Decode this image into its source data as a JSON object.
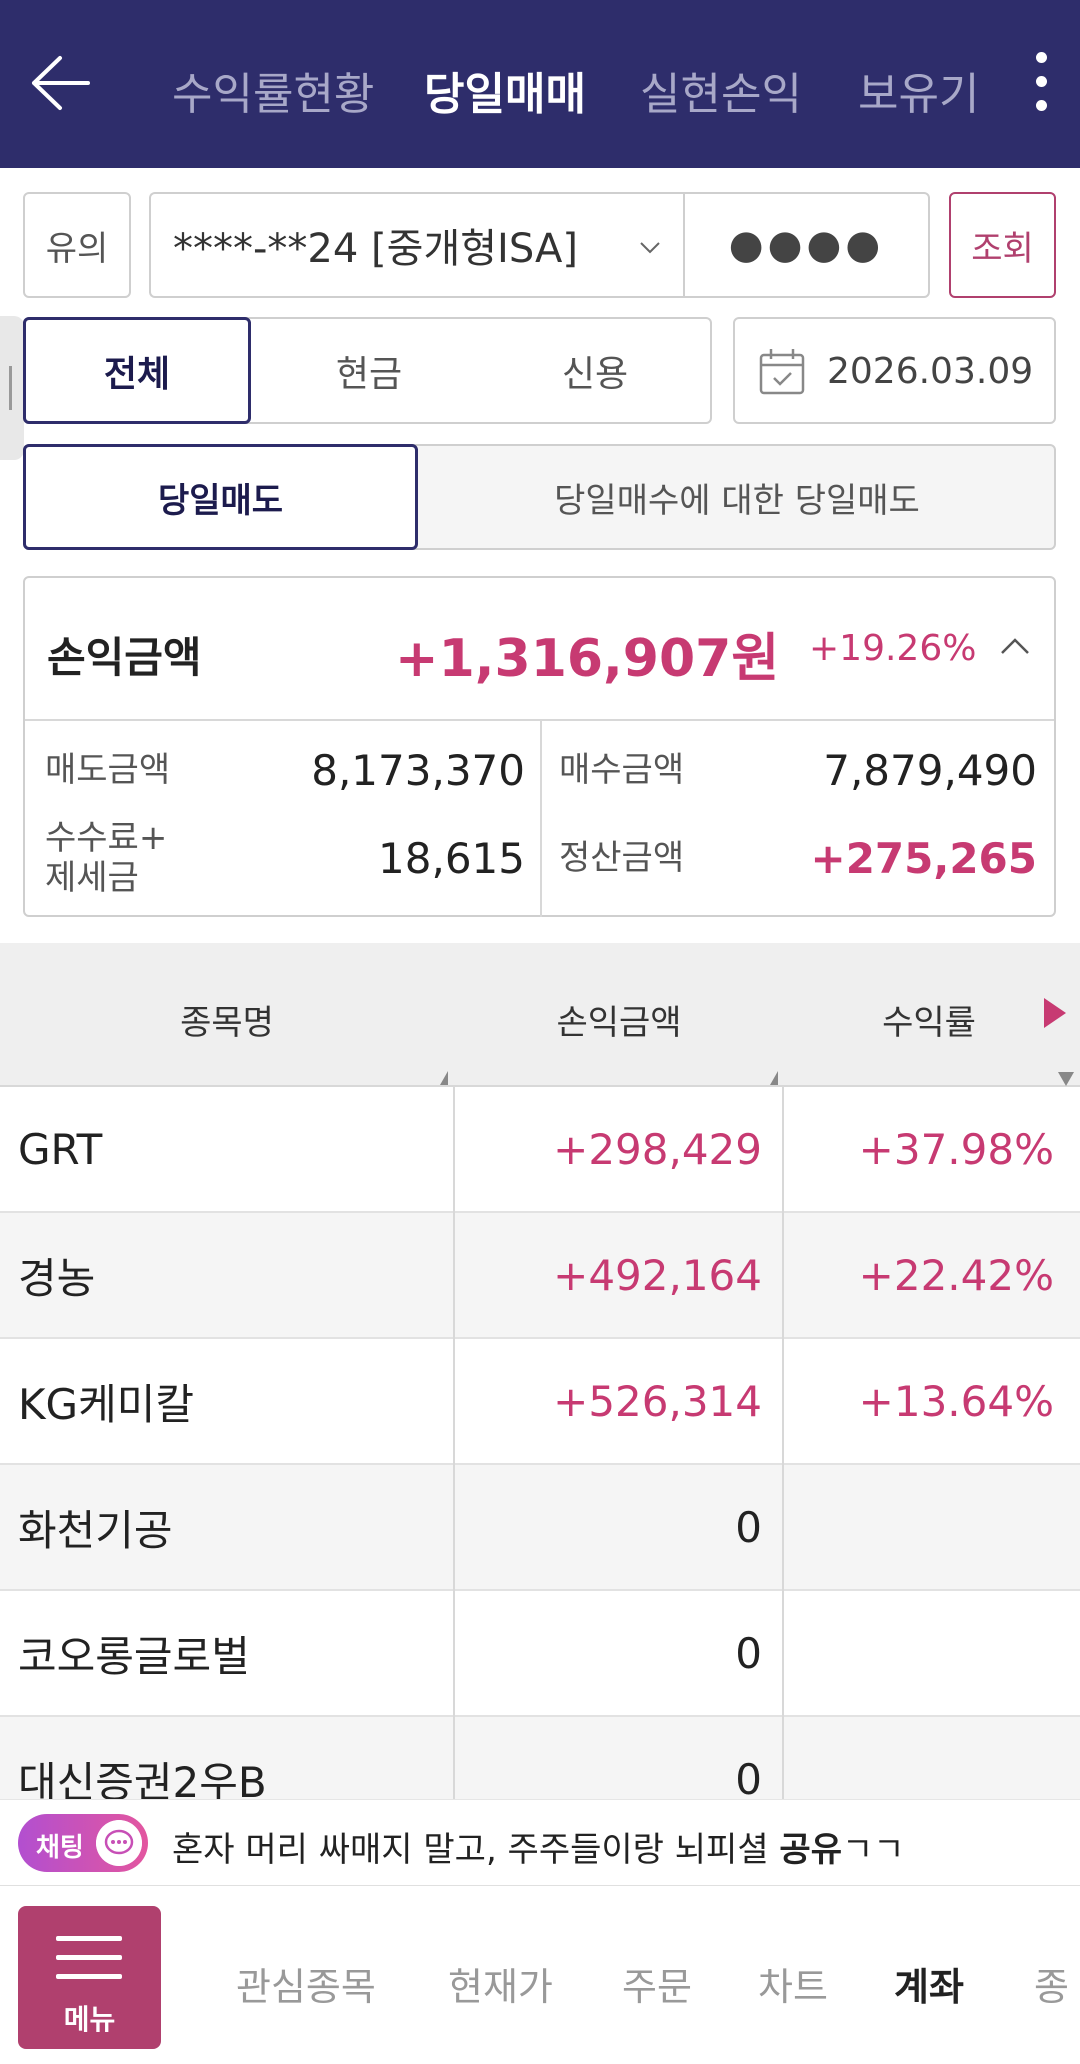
{
  "header": {
    "tabs": [
      {
        "label": "수익률현황",
        "active": false
      },
      {
        "label": "당일매매",
        "active": true
      },
      {
        "label": "실현손익",
        "active": false
      },
      {
        "label": "보유기",
        "active": false
      }
    ],
    "bg_color": "#2e2d6b"
  },
  "controls": {
    "notice_label": "유의",
    "account_value": "****-**24 [중개형ISA]",
    "password_mask": "●●●●",
    "search_label": "조회",
    "segments": [
      {
        "label": "전체",
        "active": true
      },
      {
        "label": "현금",
        "active": false
      },
      {
        "label": "신용",
        "active": false
      }
    ],
    "date": "2026.03.09",
    "sell_tabs": [
      {
        "label": "당일매도",
        "active": true
      },
      {
        "label": "당일매수에 대한 당일매도",
        "active": false
      }
    ]
  },
  "summary": {
    "label": "손익금액",
    "amount": "+1,316,907원",
    "rate": "+19.26%",
    "sell_label": "매도금액",
    "sell_value": "8,173,370",
    "buy_label": "매수금액",
    "buy_value": "7,879,490",
    "fee_label_line1": "수수료+",
    "fee_label_line2": "제세금",
    "fee_value": "18,615",
    "settle_label": "정산금액",
    "settle_value": "+275,265"
  },
  "table": {
    "headers": [
      "종목명",
      "손익금액",
      "수익률"
    ],
    "rows": [
      {
        "name": "GRT",
        "pl": "+298,429",
        "rate": "+37.98%"
      },
      {
        "name": "경농",
        "pl": "+492,164",
        "rate": "+22.42%"
      },
      {
        "name": "KG케미칼",
        "pl": "+526,314",
        "rate": "+13.64%"
      },
      {
        "name": "화천기공",
        "pl": "0",
        "rate": ""
      },
      {
        "name": "코오롱글로벌",
        "pl": "0",
        "rate": ""
      },
      {
        "name": "대신증권2우B",
        "pl": "0",
        "rate": ""
      }
    ]
  },
  "chat": {
    "pill_label": "채팅",
    "message_prefix": "혼자 머리 싸매지 말고, 주주들이랑 뇌피셜 ",
    "message_bold": "공유",
    "message_suffix": "ㄱㄱ"
  },
  "bottom_nav": {
    "menu_label": "메뉴",
    "items": [
      {
        "label": "관심종목",
        "active": false
      },
      {
        "label": "현재가",
        "active": false
      },
      {
        "label": "주문",
        "active": false
      },
      {
        "label": "차트",
        "active": false
      },
      {
        "label": "계좌",
        "active": true
      },
      {
        "label": "종",
        "active": false
      }
    ]
  },
  "colors": {
    "accent": "#b0406e",
    "positive": "#c73a72",
    "navy": "#2e2d6b"
  }
}
